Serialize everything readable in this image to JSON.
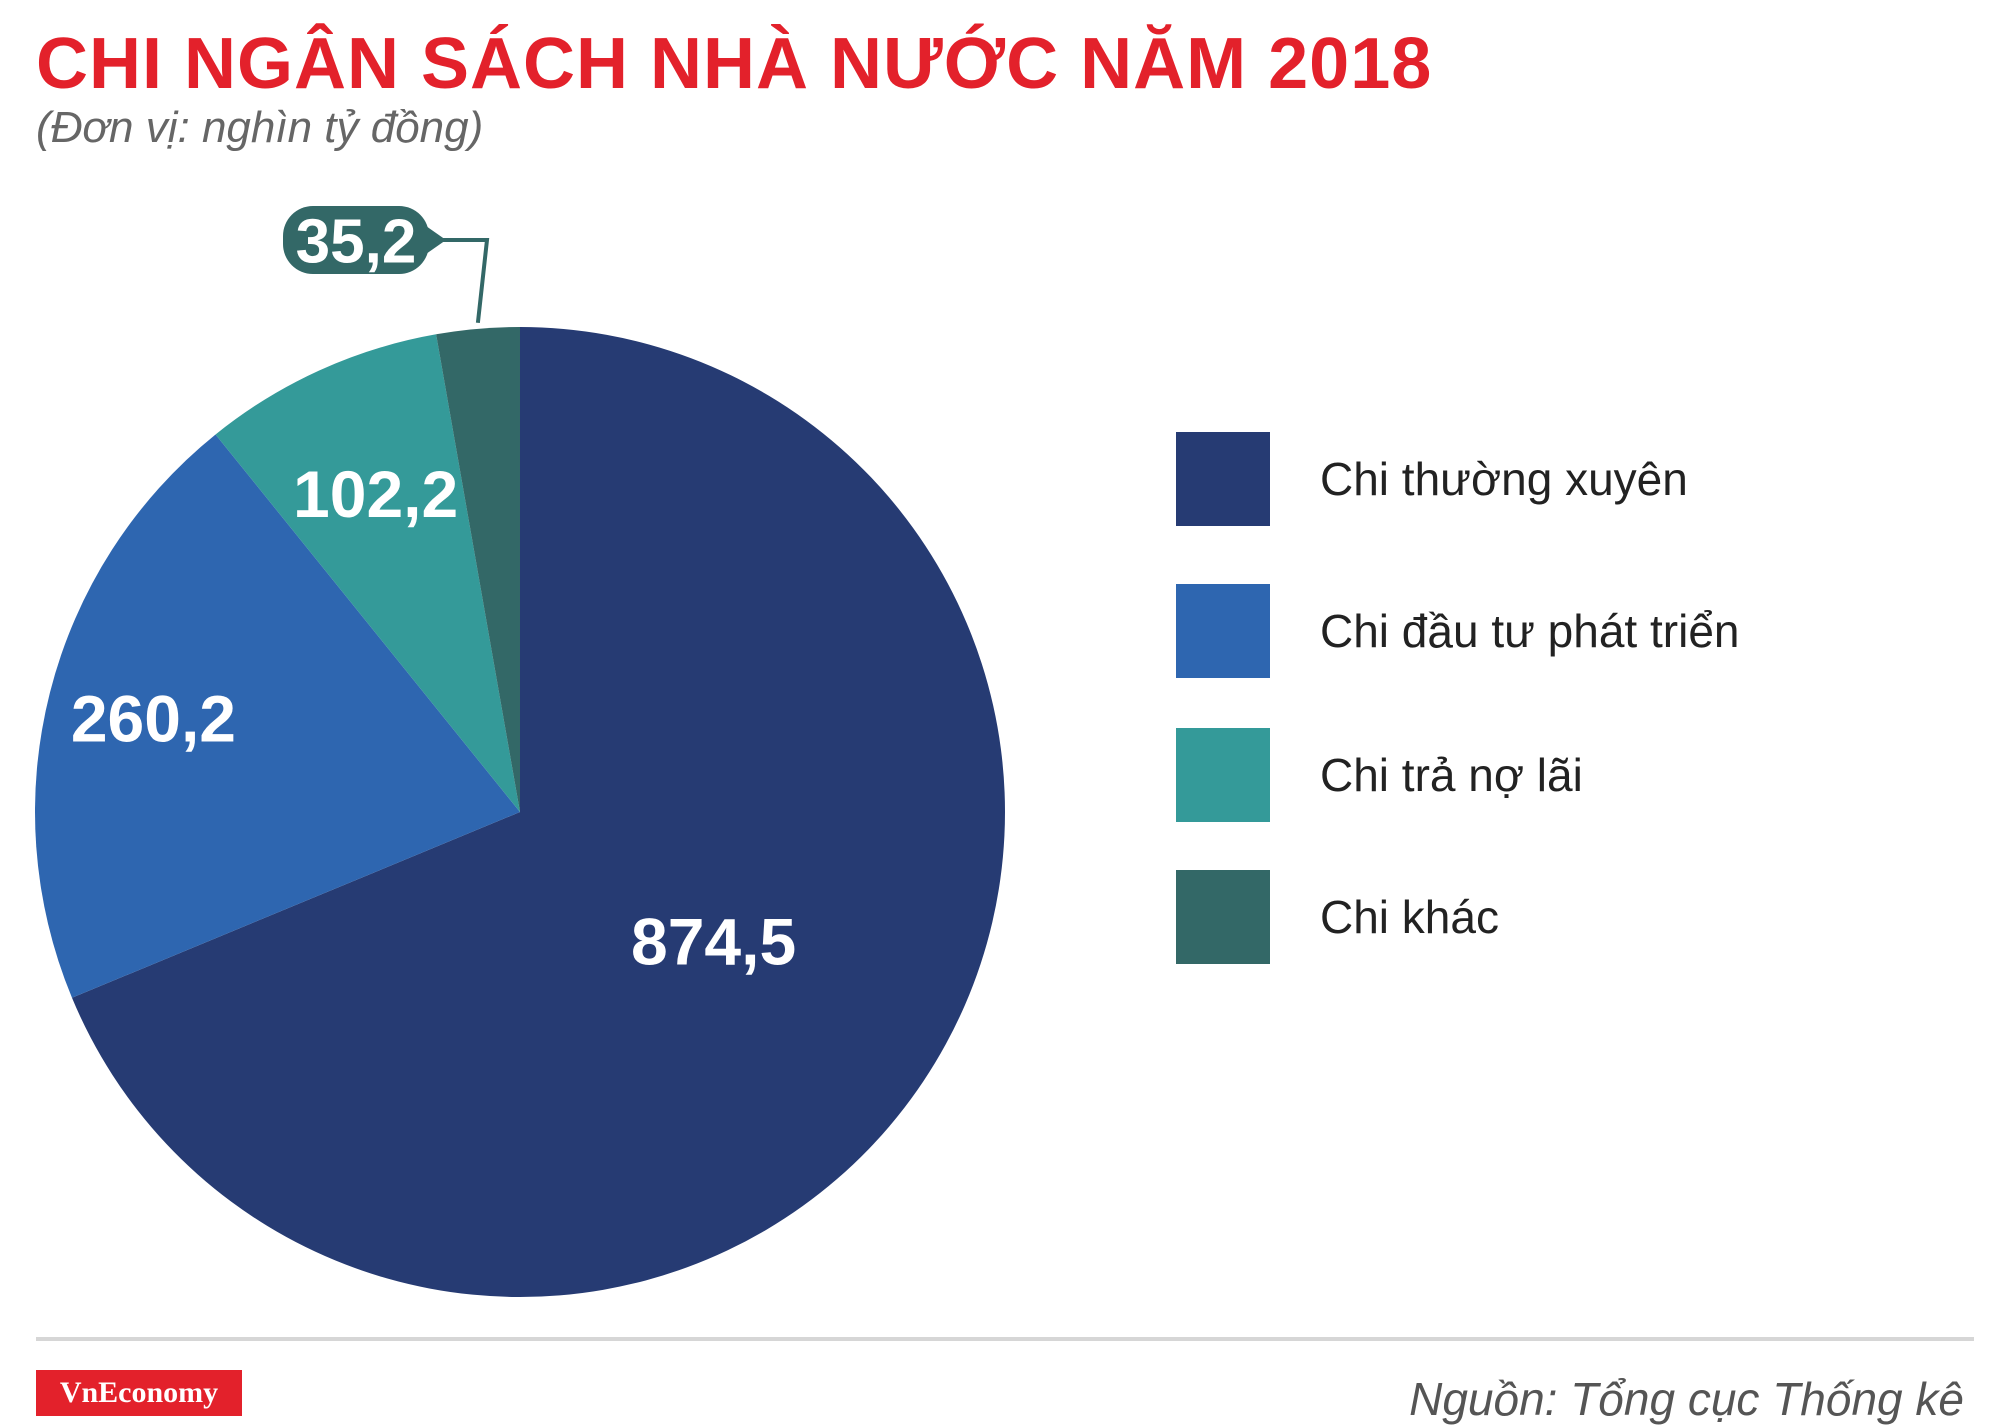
{
  "chart_data": {
    "type": "pie",
    "title": "CHI NGÂN SÁCH NHÀ NƯỚC NĂM 2018",
    "subtitle": "(Đơn vị: nghìn tỷ đồng)",
    "categories": [
      "Chi thường xuyên",
      "Chi đầu tư phát triển",
      "Chi trả nợ lãi",
      "Chi khác"
    ],
    "values": [
      874.5,
      260.2,
      102.2,
      35.2
    ],
    "value_labels": [
      "874,5",
      "260,2",
      "102,2",
      "35,2"
    ],
    "colors": [
      "#263b73",
      "#2e66b0",
      "#349a99",
      "#336867"
    ],
    "legend_position": "right"
  },
  "footer": {
    "logo": "VnEconomy",
    "source": "Nguồn: Tổng cục Thống kê"
  }
}
